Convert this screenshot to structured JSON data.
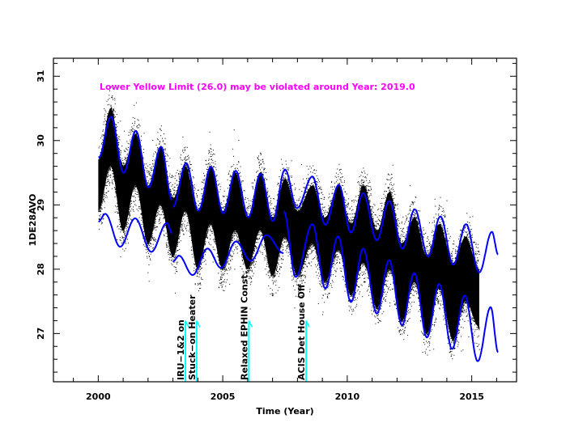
{
  "chart_data": {
    "type": "scatter",
    "title": "",
    "xlabel": "Time (Year)",
    "ylabel": "1DE28AVO",
    "xlim": [
      1998.2,
      2016.8
    ],
    "ylim": [
      26.25,
      31.28
    ],
    "x_ticks": [
      2000,
      2005,
      2010,
      2015
    ],
    "y_ticks": [
      27,
      28,
      29,
      30,
      31
    ],
    "grid": false,
    "annotation_text": "Lower Yellow  Limit (26.0) may be violated around Year: 2019.0",
    "colors": {
      "data": "#000000",
      "envelope": "#0000ff",
      "annotation": "#ff00ff",
      "events": "#00ffff"
    },
    "events": [
      {
        "year": 2003.5,
        "label": "IRU−1&2 on"
      },
      {
        "year": 2003.95,
        "label": "Stuck−on Heater"
      },
      {
        "year": 2006.05,
        "label": "Relaxed EPHIN Const."
      },
      {
        "year": 2008.35,
        "label": "ACIS Det House Off"
      }
    ],
    "data_envelope": {
      "x": [
        2000.0,
        2000.5,
        2001.0,
        2001.5,
        2002.0,
        2002.5,
        2003.0,
        2003.5,
        2004.0,
        2004.5,
        2005.0,
        2005.5,
        2006.0,
        2006.5,
        2007.0,
        2007.5,
        2008.0,
        2008.6,
        2009.1,
        2009.65,
        2010.15,
        2010.65,
        2011.2,
        2011.7,
        2012.2,
        2012.7,
        2013.2,
        2013.7,
        2014.25,
        2014.75,
        2015.3
      ],
      "top": [
        29.7,
        30.5,
        29.6,
        30.1,
        29.3,
        29.9,
        29.1,
        29.6,
        28.9,
        29.6,
        28.9,
        29.5,
        28.8,
        29.5,
        28.8,
        29.4,
        28.9,
        29.3,
        28.8,
        29.3,
        28.7,
        29.3,
        28.6,
        29.2,
        28.4,
        28.8,
        28.2,
        28.7,
        28.1,
        28.5,
        28.0
      ],
      "bottom": [
        28.9,
        29.6,
        28.6,
        29.3,
        28.4,
        29.0,
        28.2,
        28.9,
        28.0,
        28.7,
        28.0,
        28.6,
        28.0,
        28.6,
        27.9,
        28.5,
        27.9,
        28.4,
        27.8,
        28.3,
        27.6,
        28.1,
        27.4,
        28.0,
        27.2,
        27.8,
        27.0,
        27.7,
        26.9,
        27.5,
        27.1
      ]
    },
    "series": [
      {
        "role": "upper-limit-1",
        "x": [
          2000.01,
          2000.51,
          2001.02,
          2001.51,
          2002.02,
          2002.52,
          2002.96
        ],
        "y": [
          29.73,
          30.37,
          29.5,
          30.15,
          29.27,
          29.9,
          29.08
        ]
      },
      {
        "role": "upper-limit-2",
        "x": [
          2003.0,
          2003.53,
          2004.02,
          2004.53,
          2005.02,
          2005.52,
          2006.03,
          2006.52,
          2007.01,
          2007.5,
          2007.98,
          2008.6,
          2009.12,
          2009.66,
          2010.15,
          2010.64,
          2011.19,
          2011.68,
          2012.22,
          2012.71,
          2013.25,
          2013.74,
          2014.26,
          2014.77,
          2015.3,
          2015.81,
          2016.06
        ],
        "y": [
          28.97,
          29.65,
          28.91,
          29.59,
          28.87,
          29.53,
          28.81,
          29.48,
          28.75,
          29.55,
          28.95,
          29.44,
          28.69,
          29.31,
          28.57,
          29.18,
          28.45,
          29.06,
          28.32,
          28.93,
          28.2,
          28.82,
          28.07,
          28.7,
          27.95,
          28.58,
          28.23
        ]
      },
      {
        "role": "lower-limit-1",
        "x": [
          2000.01,
          2000.28,
          2000.88,
          2001.48,
          2002.13,
          2002.76,
          2002.96
        ],
        "y": [
          28.74,
          28.86,
          28.35,
          28.79,
          28.27,
          28.72,
          28.56
        ]
      },
      {
        "role": "lower-limit-2",
        "x": [
          2003.0,
          2003.24,
          2003.79,
          2004.39,
          2004.93,
          2005.53,
          2006.13,
          2006.76,
          2007.44
        ],
        "y": [
          28.12,
          28.21,
          27.91,
          28.32,
          28.02,
          28.43,
          28.13,
          28.53,
          28.25
        ]
      },
      {
        "role": "lower-limit-3",
        "x": [
          2007.45,
          2007.93,
          2008.6,
          2009.12,
          2009.63,
          2010.15,
          2010.64,
          2011.19,
          2011.68,
          2012.2,
          2012.69,
          2013.2,
          2013.69,
          2014.21,
          2014.72,
          2015.24,
          2015.76,
          2016.06
        ],
        "y": [
          28.9,
          27.88,
          28.7,
          27.7,
          28.51,
          27.49,
          28.32,
          27.31,
          28.14,
          27.13,
          27.94,
          26.94,
          27.77,
          26.76,
          27.59,
          26.57,
          27.41,
          26.71
        ]
      }
    ]
  }
}
